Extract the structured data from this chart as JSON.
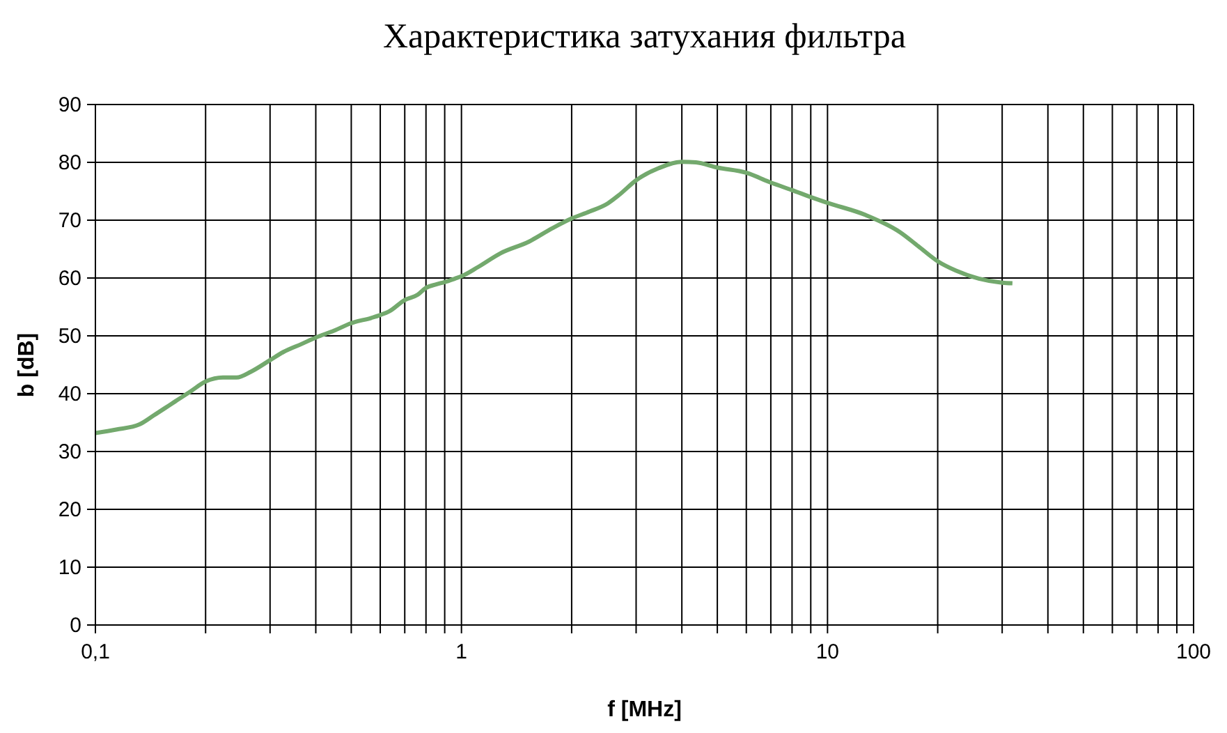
{
  "chart_data": {
    "type": "line",
    "title": "Характеристика затухания фильтра",
    "xlabel": "f [MHz]",
    "ylabel": "b [dB]",
    "x": [
      0.1,
      0.114,
      0.132,
      0.144,
      0.161,
      0.182,
      0.2,
      0.223,
      0.243,
      0.266,
      0.3,
      0.326,
      0.366,
      0.4,
      0.449,
      0.5,
      0.567,
      0.6,
      0.637,
      0.7,
      0.759,
      0.8,
      0.853,
      0.9,
      0.96,
      1,
      1.11,
      1.28,
      1.53,
      1.77,
      2,
      2.24,
      2.51,
      2.7,
      3,
      3.46,
      4,
      4.37,
      5,
      6,
      7,
      8,
      9,
      10,
      12.7,
      15.8,
      17.7,
      20,
      22.4,
      25.9,
      30,
      32
    ],
    "values": [
      33.2,
      33.8,
      34.7,
      36.2,
      38.2,
      40.4,
      42.1,
      42.8,
      42.8,
      43.8,
      45.8,
      47.2,
      48.6,
      49.7,
      50.9,
      52.2,
      53.1,
      53.6,
      54.3,
      56.2,
      57.1,
      58.3,
      58.9,
      59.3,
      59.9,
      60.3,
      61.9,
      64.3,
      66.3,
      68.6,
      70.3,
      71.5,
      72.9,
      74.4,
      76.9,
      79.0,
      80.1,
      80.0,
      79.1,
      78.2,
      76.5,
      75.2,
      74.0,
      73.0,
      70.9,
      67.9,
      65.5,
      62.9,
      61.3,
      59.9,
      59.2,
      59.1
    ],
    "color": "#73a96d",
    "marker": "none",
    "log": "x",
    "grid": true,
    "xlim": [
      0.1,
      100
    ],
    "xticks": [
      {
        "value": 0.1,
        "label": "0,1"
      },
      {
        "value": 0.2,
        "label": null
      },
      {
        "value": 0.3,
        "label": null
      },
      {
        "value": 0.4,
        "label": null
      },
      {
        "value": 0.5,
        "label": null
      },
      {
        "value": 0.6,
        "label": null
      },
      {
        "value": 0.7,
        "label": null
      },
      {
        "value": 0.8,
        "label": null
      },
      {
        "value": 0.9,
        "label": null
      },
      1,
      {
        "value": 2,
        "label": null
      },
      {
        "value": 3,
        "label": null
      },
      {
        "value": 4,
        "label": null
      },
      {
        "value": 5,
        "label": null
      },
      {
        "value": 6,
        "label": null
      },
      {
        "value": 7,
        "label": null
      },
      {
        "value": 8,
        "label": null
      },
      {
        "value": 9,
        "label": null
      },
      10,
      {
        "value": 20,
        "label": null
      },
      {
        "value": 30,
        "label": null
      },
      {
        "value": 40,
        "label": null
      },
      {
        "value": 50,
        "label": null
      },
      {
        "value": 60,
        "label": null
      },
      {
        "value": 70,
        "label": null
      },
      {
        "value": 80,
        "label": null
      },
      {
        "value": 90,
        "label": null
      },
      100
    ],
    "ylim": [
      0,
      90
    ],
    "yticks": [
      0,
      10,
      20,
      30,
      40,
      50,
      60,
      70,
      80,
      90
    ]
  }
}
